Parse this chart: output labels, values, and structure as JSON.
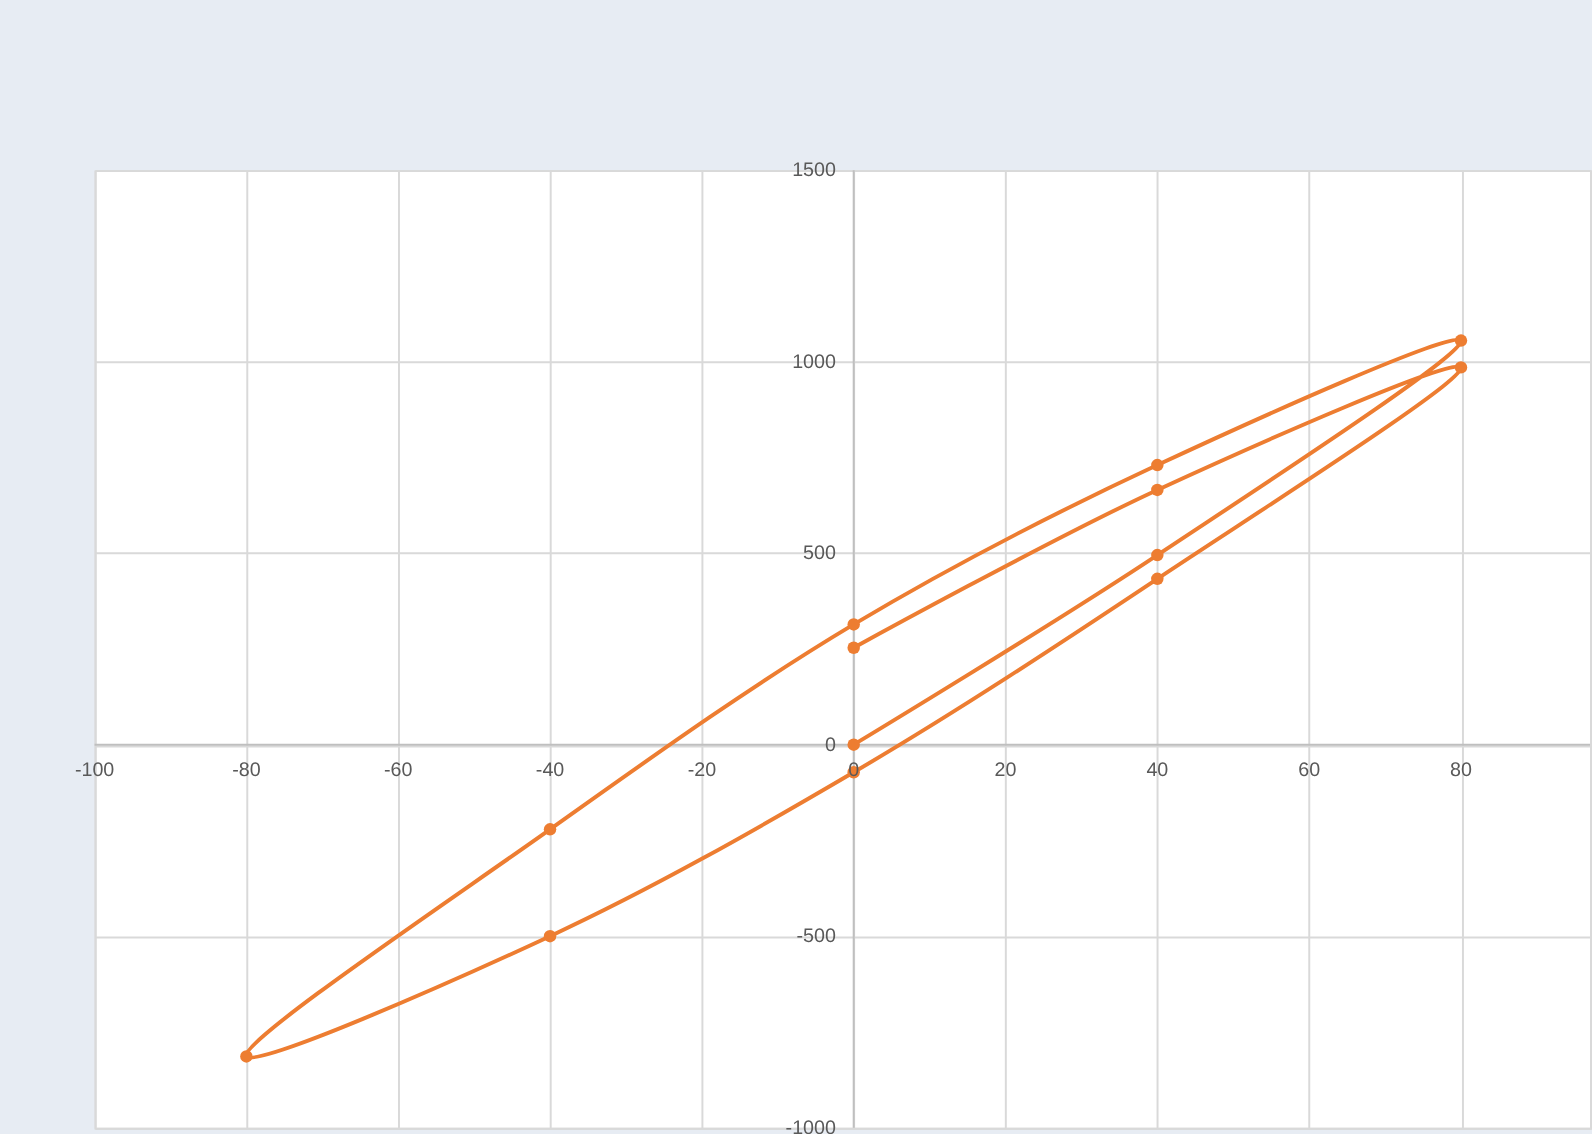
{
  "chart_data": {
    "type": "line",
    "x": [
      0,
      40,
      80,
      40,
      0,
      -40,
      -80,
      -40,
      0,
      40,
      80,
      40,
      0
    ],
    "series": [
      {
        "color": "#ed7d31",
        "values": [
          0,
          495,
          1055,
          730,
          314,
          -221,
          -814,
          -500,
          -72,
          433,
          985,
          665,
          253
        ]
      }
    ],
    "xlim": [
      -100,
      97
    ],
    "ylim": [
      -1000,
      1500
    ],
    "xticks": [
      -100,
      -80,
      -60,
      -40,
      -20,
      0,
      20,
      40,
      60,
      80
    ],
    "yticks": [
      -1000,
      -500,
      0,
      500,
      1000,
      1500
    ],
    "grid": true,
    "marker": "circle"
  }
}
